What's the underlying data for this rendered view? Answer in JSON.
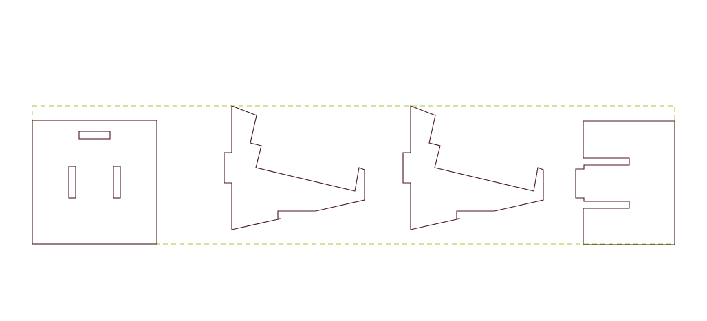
{
  "colors": {
    "background": "#ffffff",
    "cut_line": "#4a1420",
    "bounding_box": "#a8c83c"
  },
  "parts": [
    {
      "id": "panel-with-slots"
    },
    {
      "id": "side-support-left"
    },
    {
      "id": "side-support-right"
    },
    {
      "id": "panel-with-tab"
    }
  ]
}
